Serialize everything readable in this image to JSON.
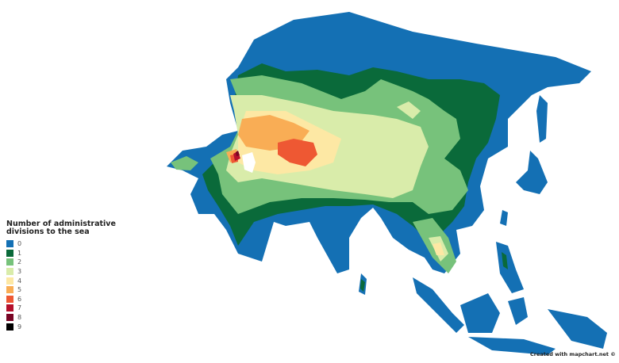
{
  "legend": {
    "title": "Number of administrative divisions to the sea",
    "items": [
      {
        "label": "0",
        "color": "#1470b4"
      },
      {
        "label": "1",
        "color": "#0a6a3a"
      },
      {
        "label": "2",
        "color": "#77c27b"
      },
      {
        "label": "3",
        "color": "#d9ecaa"
      },
      {
        "label": "4",
        "color": "#fde8a4"
      },
      {
        "label": "5",
        "color": "#f9ad55"
      },
      {
        "label": "6",
        "color": "#ee5833"
      },
      {
        "label": "7",
        "color": "#b5102c"
      },
      {
        "label": "8",
        "color": "#780524"
      },
      {
        "label": "9",
        "color": "#000000"
      }
    ]
  },
  "credit": "Created with mapchart.net ©"
}
